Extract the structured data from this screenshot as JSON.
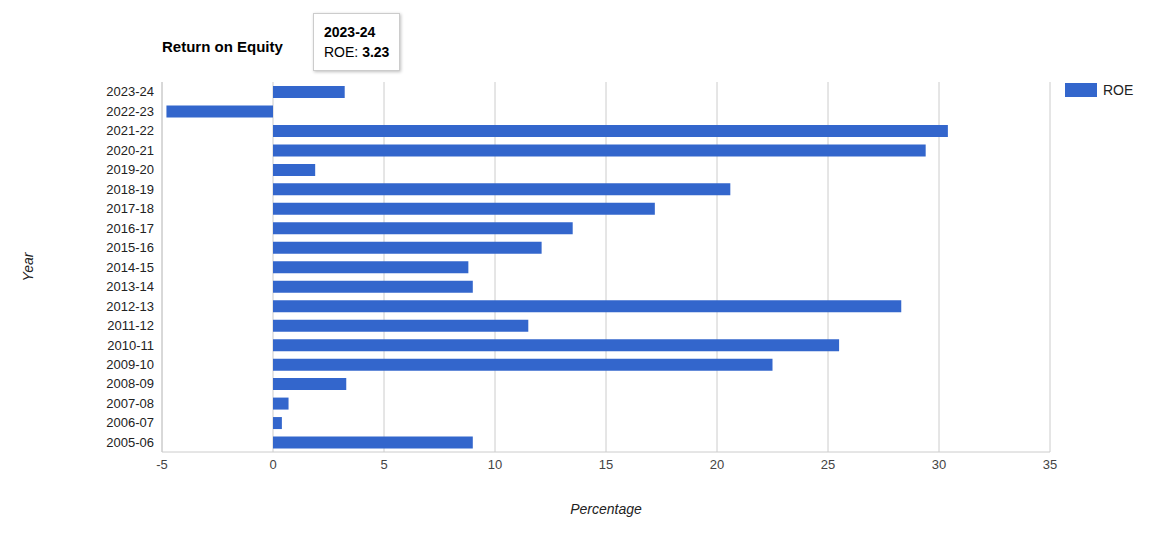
{
  "chart_data": {
    "type": "bar",
    "orientation": "horizontal",
    "title": "Return on Equity",
    "x_label": "Percentage",
    "y_label": "Year",
    "categories": [
      "2023-24",
      "2022-23",
      "2021-22",
      "2020-21",
      "2019-20",
      "2018-19",
      "2017-18",
      "2016-17",
      "2015-16",
      "2014-15",
      "2013-14",
      "2012-13",
      "2011-12",
      "2010-11",
      "2009-10",
      "2008-09",
      "2007-08",
      "2006-07",
      "2005-06"
    ],
    "series": [
      {
        "name": "ROE",
        "color": "#3366cc",
        "values": [
          3.23,
          -4.8,
          30.4,
          29.4,
          1.9,
          20.6,
          17.2,
          13.5,
          12.1,
          8.8,
          9.0,
          28.3,
          11.5,
          25.5,
          22.5,
          3.3,
          0.7,
          0.4,
          9.0
        ]
      }
    ],
    "xlim": [
      -5,
      35
    ],
    "xticks": [
      -5,
      0,
      5,
      10,
      15,
      20,
      25,
      30,
      35
    ],
    "grid": true,
    "legend": "upper right",
    "annotations": [
      {
        "title": "2023-24",
        "text": "ROE: 3.23"
      }
    ]
  }
}
